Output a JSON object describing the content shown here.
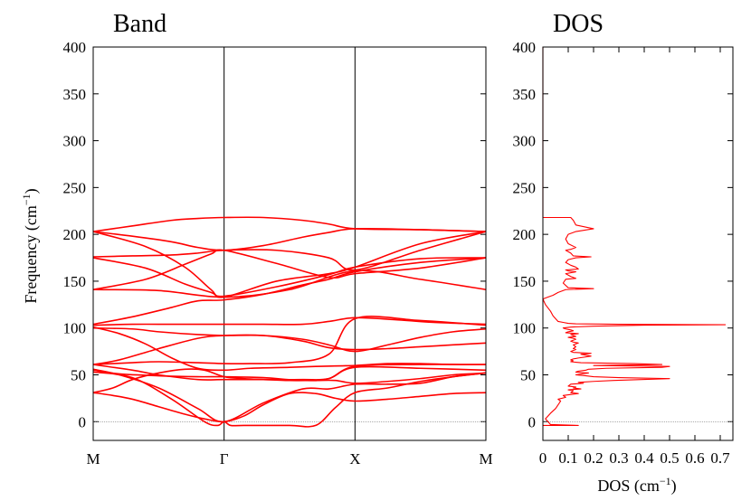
{
  "chart_data": [
    {
      "type": "line",
      "title": "Band",
      "ylabel": "Frequency (cm",
      "ylabel_sup": "−1",
      "ylabel_tail": ")",
      "ylim": [
        -20,
        400
      ],
      "yticks": [
        "400",
        "350",
        "300",
        "250",
        "200",
        "150",
        "100",
        "50",
        "0"
      ],
      "xtick_labels": [
        "M",
        "Γ",
        "X",
        "M"
      ],
      "xticks_q": [
        0,
        1,
        2,
        3
      ],
      "line_color": "#ff0000",
      "series": [
        {
          "x": [
            0,
            0.15,
            0.3,
            0.5,
            0.7,
            0.85,
            1,
            1.15,
            1.3,
            1.5,
            1.7,
            1.85,
            2,
            2.25,
            2.5,
            2.75,
            3
          ],
          "y": [
            31,
            36,
            45,
            52,
            56,
            55,
            48,
            46,
            45,
            44,
            44,
            44,
            41,
            43,
            46,
            50,
            52
          ]
        },
        {
          "x": [
            0,
            0.15,
            0.3,
            0.5,
            0.7,
            0.85,
            1,
            1.15,
            1.3,
            1.5,
            1.7,
            1.85,
            2,
            2.25,
            2.5,
            2.75,
            3
          ],
          "y": [
            31,
            28,
            24,
            16,
            8,
            3,
            0,
            6,
            18,
            30,
            30,
            25,
            22,
            24,
            27,
            30,
            31
          ]
        },
        {
          "x": [
            0,
            0.3,
            0.6,
            0.85,
            0.95,
            1,
            1.05,
            1.15,
            1.5,
            1.7,
            1.85,
            2,
            2.25,
            2.5,
            2.75,
            3
          ],
          "y": [
            53,
            47,
            24,
            0,
            -4,
            0,
            -4,
            -4,
            -4,
            -4,
            15,
            31,
            36,
            43,
            48,
            52
          ]
        },
        {
          "x": [
            0,
            0.2,
            0.5,
            0.8,
            1,
            1.3,
            1.6,
            1.8,
            2,
            2.25,
            2.5,
            2.75,
            3
          ],
          "y": [
            56,
            50,
            36,
            14,
            0,
            20,
            35,
            35,
            40,
            40,
            41,
            48,
            52
          ]
        },
        {
          "x": [
            0,
            0.3,
            0.5,
            0.8,
            1,
            1.3,
            1.6,
            1.8,
            2,
            2.5,
            3
          ],
          "y": [
            61,
            55,
            50,
            45,
            45,
            45,
            45,
            46,
            58,
            57,
            55
          ]
        },
        {
          "x": [
            0,
            0.2,
            0.5,
            0.8,
            1,
            1.3,
            1.6,
            1.8,
            2,
            2.5,
            3
          ],
          "y": [
            55,
            51,
            49,
            48,
            48,
            47,
            44,
            46,
            59,
            61,
            61
          ]
        },
        {
          "x": [
            0,
            0.2,
            0.5,
            0.8,
            1,
            1.3,
            1.6,
            1.8,
            2,
            2.25,
            2.5,
            2.75,
            3
          ],
          "y": [
            61,
            66,
            78,
            89,
            92,
            92,
            86,
            79,
            77,
            78,
            80,
            82,
            84
          ]
        },
        {
          "x": [
            0,
            0.2,
            0.4,
            0.6,
            0.8,
            1,
            1.2,
            1.5,
            1.7,
            2,
            2.25,
            2.5,
            2.75,
            3
          ],
          "y": [
            101,
            94,
            83,
            68,
            57,
            55,
            57,
            58,
            59,
            60,
            62,
            62,
            61,
            61
          ]
        },
        {
          "x": [
            0,
            0.3,
            0.5,
            0.8,
            1,
            1.3,
            1.6,
            1.8,
            2,
            2.25,
            2.5,
            2.75,
            3
          ],
          "y": [
            100,
            99,
            96,
            93,
            92,
            92,
            88,
            82,
            75,
            82,
            90,
            96,
            99
          ]
        },
        {
          "x": [
            0,
            0.3,
            0.6,
            0.9,
            1,
            1.3,
            1.6,
            1.8,
            2,
            2.3,
            2.6,
            3
          ],
          "y": [
            103,
            104,
            104,
            104,
            104,
            104,
            104,
            107,
            111,
            109,
            106,
            104
          ]
        },
        {
          "x": [
            0,
            0.3,
            0.5,
            0.8,
            1,
            1.2,
            1.5,
            1.8,
            2,
            2.5,
            3
          ],
          "y": [
            61,
            63,
            64,
            63,
            62,
            62,
            63,
            72,
            110,
            108,
            103
          ]
        },
        {
          "x": [
            0,
            0.5,
            1,
            1.5,
            2,
            2.5,
            3
          ],
          "y": [
            141,
            140,
            133,
            141,
            161,
            152,
            141
          ]
        },
        {
          "x": [
            0,
            0.3,
            0.6,
            0.8,
            1,
            1.3,
            1.6,
            1.8,
            2,
            2.5,
            3
          ],
          "y": [
            104,
            112,
            122,
            129,
            130,
            136,
            146,
            152,
            160,
            170,
            175
          ]
        },
        {
          "x": [
            0,
            0.4,
            0.7,
            0.9,
            1,
            1.4,
            1.8,
            2,
            2.5,
            3
          ],
          "y": [
            141,
            152,
            168,
            179,
            183,
            169,
            154,
            158,
            164,
            175
          ]
        },
        {
          "x": [
            0,
            0.4,
            0.7,
            0.9,
            1,
            1.4,
            1.8,
            2,
            2.5,
            3
          ],
          "y": [
            175,
            164,
            147,
            138,
            134,
            144,
            157,
            165,
            174,
            175
          ]
        },
        {
          "x": [
            0,
            0.4,
            0.7,
            0.9,
            1,
            1.4,
            1.8,
            2,
            2.5,
            3
          ],
          "y": [
            203,
            187,
            165,
            141,
            133,
            150,
            158,
            165,
            190,
            203
          ]
        },
        {
          "x": [
            0,
            0.3,
            0.6,
            0.8,
            1,
            1.4,
            1.8,
            2,
            2.5,
            3
          ],
          "y": [
            176,
            177,
            178,
            180,
            183,
            183,
            175,
            162,
            183,
            203
          ]
        },
        {
          "x": [
            0,
            0.3,
            0.6,
            0.8,
            1,
            1.3,
            1.6,
            1.8,
            2,
            2.5,
            3
          ],
          "y": [
            203,
            198,
            192,
            186,
            183,
            188,
            197,
            202,
            206,
            205,
            203
          ]
        },
        {
          "x": [
            0,
            0.3,
            0.6,
            0.8,
            1,
            1.3,
            1.6,
            1.8,
            2,
            2.5,
            3
          ],
          "y": [
            203,
            209,
            215,
            217,
            218,
            218,
            215,
            211,
            206,
            205,
            203
          ]
        }
      ]
    },
    {
      "type": "line",
      "title": "DOS",
      "xlabel": "DOS (cm",
      "xlabel_sup": "−1",
      "xlabel_tail": ")",
      "xlim": [
        0,
        0.75
      ],
      "ylim": [
        -20,
        400
      ],
      "xticks": [
        "0",
        "0.1",
        "0.2",
        "0.3",
        "0.4",
        "0.5",
        "0.6",
        "0.7"
      ],
      "yticks": [
        "400",
        "350",
        "300",
        "250",
        "200",
        "150",
        "100",
        "50",
        "0"
      ],
      "line_color": "#ff0000",
      "series": [
        {
          "y": [
            -4,
            -4,
            -3,
            0,
            3,
            6,
            9,
            14,
            18,
            22,
            24,
            26,
            28,
            30,
            31,
            33,
            34,
            35,
            36,
            37,
            38,
            40,
            41,
            42,
            43,
            44,
            45,
            46,
            47,
            48,
            49,
            50,
            52,
            53,
            54,
            55,
            56,
            57,
            58,
            59,
            60,
            61,
            62,
            63,
            64,
            65,
            66,
            67,
            68,
            70,
            72,
            73,
            74,
            75,
            77,
            78,
            80,
            82,
            84,
            85,
            86,
            88,
            89,
            90,
            91,
            92,
            93,
            94,
            95,
            96,
            97,
            98,
            99,
            100,
            101,
            102,
            103,
            103.5,
            104,
            104.5,
            105,
            106,
            107,
            110,
            113,
            118,
            125,
            131,
            133,
            134,
            135,
            138,
            141,
            142,
            143,
            148,
            152,
            153,
            155,
            158,
            160,
            161,
            162,
            163,
            165,
            167,
            170,
            173,
            175,
            176,
            177,
            180,
            183,
            184,
            186,
            190,
            195,
            200,
            203,
            206,
            210,
            215,
            218,
            218,
            400
          ],
          "x": [
            0,
            0.14,
            0.03,
            0.02,
            0.01,
            0.02,
            0.03,
            0.05,
            0.06,
            0.07,
            0.06,
            0.09,
            0.08,
            0.14,
            0.11,
            0.12,
            0.1,
            0.15,
            0.12,
            0.13,
            0.1,
            0.11,
            0.16,
            0.14,
            0.2,
            0.28,
            0.39,
            0.5,
            0.3,
            0.2,
            0.17,
            0.13,
            0.18,
            0.13,
            0.14,
            0.17,
            0.18,
            0.25,
            0.47,
            0.5,
            0.2,
            0.47,
            0.36,
            0.15,
            0.11,
            0.12,
            0.11,
            0.12,
            0.14,
            0.19,
            0.15,
            0.19,
            0.12,
            0.11,
            0.13,
            0.12,
            0.13,
            0.12,
            0.14,
            0.12,
            0.11,
            0.13,
            0.12,
            0.1,
            0.13,
            0.12,
            0.11,
            0.14,
            0.09,
            0.1,
            0.12,
            0.11,
            0.09,
            0.08,
            0.11,
            0.2,
            0.4,
            0.72,
            0.3,
            0.13,
            0.1,
            0.08,
            0.06,
            0.05,
            0.04,
            0.03,
            0.01,
            0.0,
            0.02,
            0.03,
            0.04,
            0.06,
            0.09,
            0.2,
            0.1,
            0.08,
            0.09,
            0.13,
            0.11,
            0.09,
            0.13,
            0.1,
            0.09,
            0.14,
            0.13,
            0.11,
            0.09,
            0.1,
            0.13,
            0.19,
            0.12,
            0.11,
            0.09,
            0.11,
            0.13,
            0.1,
            0.09,
            0.1,
            0.13,
            0.2,
            0.13,
            0.12,
            0.11,
            0.0,
            0
          ]
        }
      ]
    }
  ]
}
